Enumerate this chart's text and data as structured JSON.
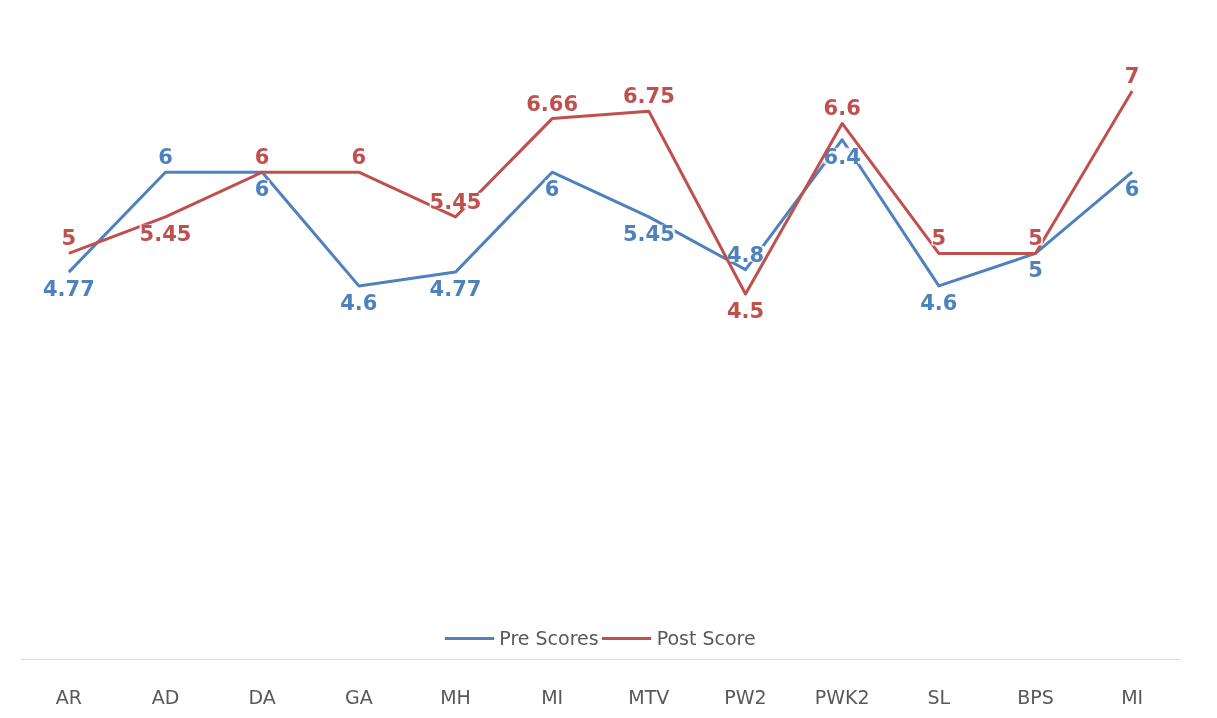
{
  "chart_data": {
    "type": "line",
    "categories": [
      "AR",
      "AD",
      "DA",
      "GA",
      "MH",
      "MI",
      "MTV",
      "PW2",
      "PWK2",
      "SL",
      "BPS",
      "MI"
    ],
    "series": [
      {
        "name": "Pre Scores",
        "color": "#4f81bd",
        "values": [
          4.77,
          6,
          6,
          4.6,
          4.77,
          6,
          5.45,
          4.8,
          6.4,
          4.6,
          5,
          6
        ]
      },
      {
        "name": "Post Score",
        "color": "#c0504d",
        "values": [
          5,
          5.45,
          6,
          6,
          5.45,
          6.66,
          6.75,
          4.5,
          6.6,
          5,
          5,
          7
        ]
      }
    ],
    "tick_labels": "x",
    "data_labels": true,
    "legend": "bottom",
    "grid": false,
    "marker": "none",
    "line_style": "solid"
  }
}
